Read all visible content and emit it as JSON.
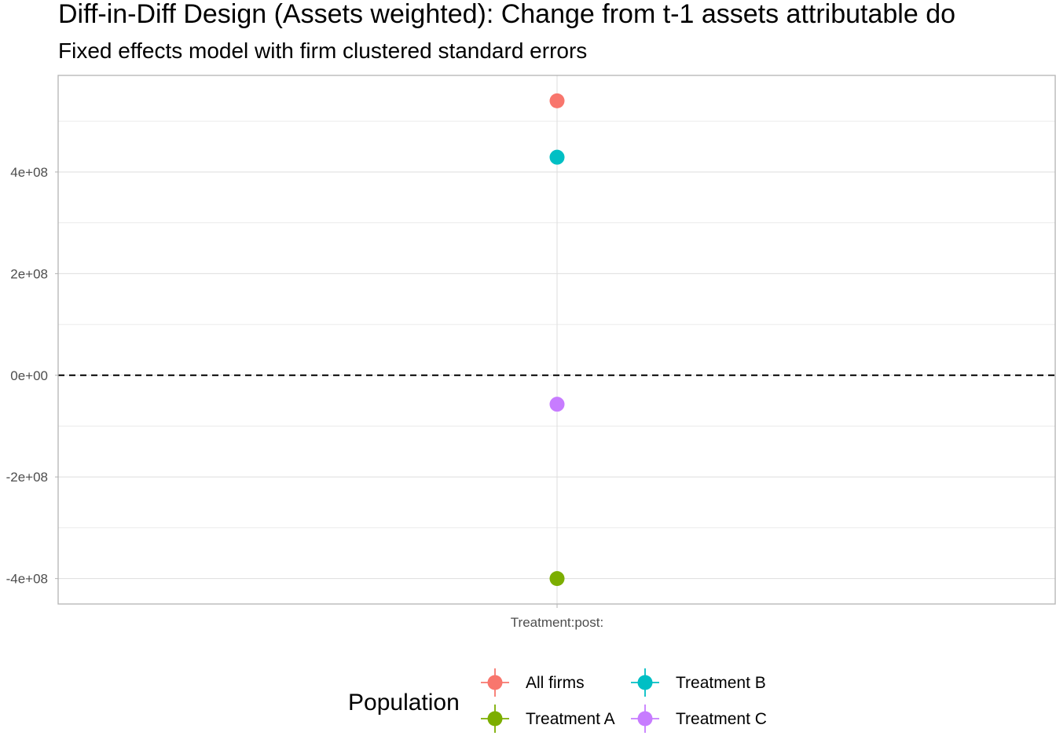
{
  "chart_data": {
    "type": "scatter",
    "title": "Diff-in-Diff Design (Assets weighted): Change from t-1 assets attributable do",
    "subtitle": "Fixed effects model with firm clustered standard errors",
    "xlabel": "",
    "ylabel": "",
    "categories": [
      "Treatment:post:"
    ],
    "ylim": [
      -450000000,
      590000000
    ],
    "y_ticks": [
      {
        "value": -400000000,
        "label": "-4e+08"
      },
      {
        "value": -200000000,
        "label": "-2e+08"
      },
      {
        "value": 0,
        "label": "0e+00"
      },
      {
        "value": 200000000,
        "label": "2e+08"
      },
      {
        "value": 400000000,
        "label": "4e+08"
      }
    ],
    "y_minor_ticks": [
      -300000000,
      -100000000,
      100000000,
      300000000,
      500000000
    ],
    "reference_line": {
      "value": 0,
      "style": "dashed"
    },
    "grid": true,
    "legend_position": "bottom",
    "legend_title": "Population",
    "series": [
      {
        "name": "All firms",
        "color": "#F8766D",
        "values": [
          540000000
        ]
      },
      {
        "name": "Treatment A",
        "color": "#7CAE00",
        "values": [
          -400000000
        ]
      },
      {
        "name": "Treatment B",
        "color": "#00BFC4",
        "values": [
          429000000
        ]
      },
      {
        "name": "Treatment C",
        "color": "#C77CFF",
        "values": [
          -57000000
        ]
      }
    ]
  }
}
